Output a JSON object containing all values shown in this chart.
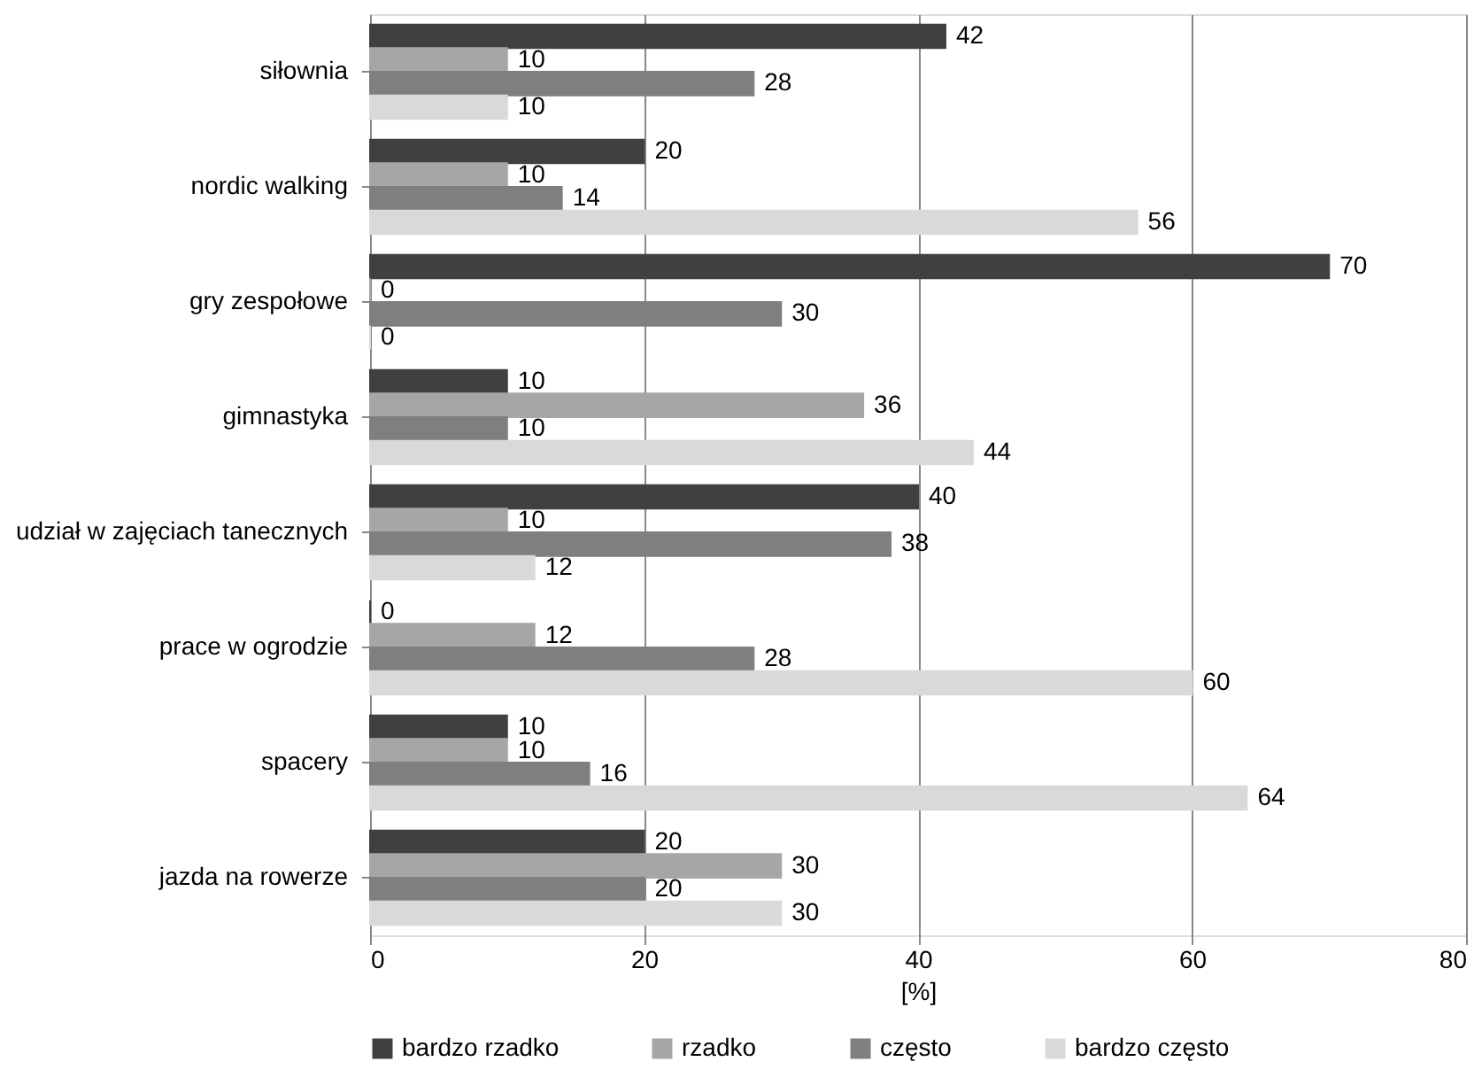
{
  "chart_data": {
    "type": "bar",
    "orientation": "horizontal",
    "xlabel": "[%]",
    "categories": [
      "siłownia",
      "nordic walking",
      "gry zespołowe",
      "gimnastyka",
      "udział w zajęciach tanecznych",
      "prace w ogrodzie",
      "spacery",
      "jazda na rowerze"
    ],
    "series": [
      {
        "name": "bardzo rzadko",
        "color": "#404040",
        "values": [
          42,
          20,
          70,
          10,
          40,
          0,
          10,
          20
        ]
      },
      {
        "name": "rzadko",
        "color": "#a6a6a6",
        "values": [
          10,
          10,
          0,
          36,
          10,
          12,
          10,
          30
        ]
      },
      {
        "name": "często",
        "color": "#7f7f7f",
        "values": [
          28,
          14,
          30,
          10,
          38,
          28,
          16,
          20
        ]
      },
      {
        "name": "bardzo często",
        "color": "#d9d9d9",
        "values": [
          10,
          56,
          0,
          44,
          12,
          60,
          64,
          30
        ]
      }
    ],
    "xlim": [
      0,
      80
    ],
    "xticks": [
      0,
      20,
      40,
      60,
      80
    ],
    "grid": "x",
    "legend": "bottom",
    "data_labels": true
  }
}
